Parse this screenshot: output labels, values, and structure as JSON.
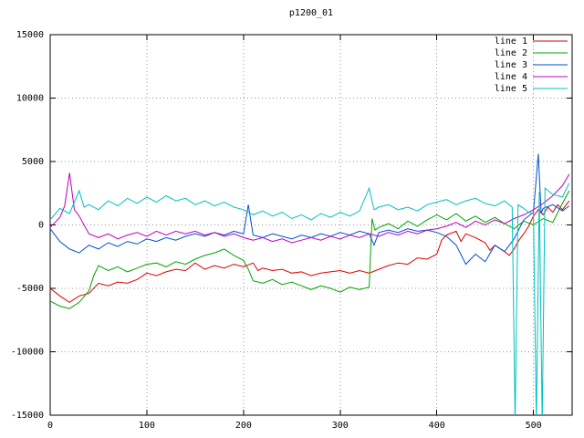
{
  "chart_data": {
    "type": "line",
    "title": "p1200_01",
    "xlabel": "",
    "ylabel": "",
    "xlim": [
      0,
      540
    ],
    "ylim": [
      -15000,
      15000
    ],
    "xticks": [
      0,
      100,
      200,
      300,
      400,
      500
    ],
    "yticks": [
      -15000,
      -10000,
      -5000,
      0,
      5000,
      10000,
      15000
    ],
    "grid": true,
    "legend_position": "top-right",
    "background": "#ffffff",
    "grid_color": "#999999",
    "axis_color": "#000000",
    "series": [
      {
        "name": "line 1",
        "color": "#dd0000",
        "points": [
          [
            0,
            -5000
          ],
          [
            10,
            -5600
          ],
          [
            20,
            -6100
          ],
          [
            30,
            -5600
          ],
          [
            40,
            -5400
          ],
          [
            50,
            -4600
          ],
          [
            60,
            -4800
          ],
          [
            70,
            -4500
          ],
          [
            80,
            -4600
          ],
          [
            90,
            -4300
          ],
          [
            100,
            -3800
          ],
          [
            110,
            -4000
          ],
          [
            120,
            -3700
          ],
          [
            130,
            -3500
          ],
          [
            140,
            -3600
          ],
          [
            150,
            -3000
          ],
          [
            160,
            -3500
          ],
          [
            170,
            -3200
          ],
          [
            180,
            -3400
          ],
          [
            190,
            -3100
          ],
          [
            200,
            -3300
          ],
          [
            210,
            -3000
          ],
          [
            215,
            -3600
          ],
          [
            220,
            -3400
          ],
          [
            230,
            -3600
          ],
          [
            240,
            -3500
          ],
          [
            250,
            -3800
          ],
          [
            260,
            -3700
          ],
          [
            270,
            -4000
          ],
          [
            280,
            -3800
          ],
          [
            290,
            -3700
          ],
          [
            300,
            -3600
          ],
          [
            310,
            -3800
          ],
          [
            320,
            -3600
          ],
          [
            330,
            -3800
          ],
          [
            340,
            -3500
          ],
          [
            350,
            -3200
          ],
          [
            360,
            -3000
          ],
          [
            370,
            -3100
          ],
          [
            380,
            -2600
          ],
          [
            390,
            -2700
          ],
          [
            400,
            -2300
          ],
          [
            405,
            -1200
          ],
          [
            410,
            -800
          ],
          [
            420,
            -500
          ],
          [
            425,
            -1300
          ],
          [
            430,
            -700
          ],
          [
            440,
            -1000
          ],
          [
            450,
            -1400
          ],
          [
            455,
            -2000
          ],
          [
            460,
            -1600
          ],
          [
            470,
            -2100
          ],
          [
            475,
            -2400
          ],
          [
            480,
            -1900
          ],
          [
            485,
            -1200
          ],
          [
            490,
            -700
          ],
          [
            495,
            -100
          ],
          [
            500,
            700
          ],
          [
            505,
            1200
          ],
          [
            510,
            800
          ],
          [
            515,
            1400
          ],
          [
            520,
            1000
          ],
          [
            525,
            1600
          ],
          [
            530,
            1200
          ],
          [
            537,
            1900
          ]
        ]
      },
      {
        "name": "line 2",
        "color": "#00a500",
        "points": [
          [
            0,
            -6000
          ],
          [
            10,
            -6400
          ],
          [
            20,
            -6600
          ],
          [
            30,
            -6100
          ],
          [
            40,
            -5200
          ],
          [
            45,
            -4000
          ],
          [
            50,
            -3200
          ],
          [
            60,
            -3600
          ],
          [
            70,
            -3300
          ],
          [
            80,
            -3700
          ],
          [
            90,
            -3400
          ],
          [
            100,
            -3100
          ],
          [
            110,
            -3000
          ],
          [
            120,
            -3300
          ],
          [
            130,
            -2900
          ],
          [
            140,
            -3100
          ],
          [
            150,
            -2700
          ],
          [
            160,
            -2400
          ],
          [
            170,
            -2200
          ],
          [
            180,
            -1900
          ],
          [
            190,
            -2400
          ],
          [
            200,
            -2800
          ],
          [
            205,
            -3500
          ],
          [
            210,
            -4400
          ],
          [
            220,
            -4600
          ],
          [
            230,
            -4300
          ],
          [
            240,
            -4700
          ],
          [
            250,
            -4500
          ],
          [
            260,
            -4800
          ],
          [
            270,
            -5100
          ],
          [
            280,
            -4800
          ],
          [
            290,
            -5000
          ],
          [
            300,
            -5300
          ],
          [
            310,
            -4900
          ],
          [
            320,
            -5100
          ],
          [
            330,
            -4900
          ],
          [
            333,
            500
          ],
          [
            336,
            -400
          ],
          [
            340,
            -200
          ],
          [
            350,
            100
          ],
          [
            360,
            -300
          ],
          [
            370,
            300
          ],
          [
            380,
            -100
          ],
          [
            390,
            400
          ],
          [
            400,
            800
          ],
          [
            410,
            400
          ],
          [
            420,
            900
          ],
          [
            430,
            300
          ],
          [
            440,
            700
          ],
          [
            450,
            200
          ],
          [
            460,
            600
          ],
          [
            470,
            100
          ],
          [
            480,
            -300
          ],
          [
            490,
            300
          ],
          [
            500,
            0
          ],
          [
            510,
            500
          ],
          [
            520,
            200
          ],
          [
            530,
            1700
          ],
          [
            537,
            2700
          ]
        ]
      },
      {
        "name": "line 3",
        "color": "#0050d0",
        "points": [
          [
            0,
            -300
          ],
          [
            10,
            -1300
          ],
          [
            20,
            -1900
          ],
          [
            30,
            -2200
          ],
          [
            40,
            -1600
          ],
          [
            50,
            -1900
          ],
          [
            60,
            -1400
          ],
          [
            70,
            -1700
          ],
          [
            80,
            -1300
          ],
          [
            90,
            -1500
          ],
          [
            100,
            -1100
          ],
          [
            110,
            -1300
          ],
          [
            120,
            -1000
          ],
          [
            130,
            -1200
          ],
          [
            140,
            -900
          ],
          [
            150,
            -700
          ],
          [
            160,
            -900
          ],
          [
            170,
            -600
          ],
          [
            180,
            -800
          ],
          [
            190,
            -500
          ],
          [
            200,
            -700
          ],
          [
            205,
            1600
          ],
          [
            210,
            -800
          ],
          [
            220,
            -1000
          ],
          [
            230,
            -700
          ],
          [
            240,
            -900
          ],
          [
            250,
            -1100
          ],
          [
            260,
            -800
          ],
          [
            270,
            -1000
          ],
          [
            280,
            -700
          ],
          [
            290,
            -900
          ],
          [
            300,
            -600
          ],
          [
            310,
            -800
          ],
          [
            320,
            -500
          ],
          [
            330,
            -700
          ],
          [
            335,
            -1600
          ],
          [
            340,
            -600
          ],
          [
            350,
            -400
          ],
          [
            360,
            -600
          ],
          [
            370,
            -300
          ],
          [
            380,
            -500
          ],
          [
            390,
            -400
          ],
          [
            400,
            -600
          ],
          [
            410,
            -900
          ],
          [
            420,
            -1600
          ],
          [
            430,
            -3100
          ],
          [
            440,
            -2300
          ],
          [
            450,
            -2900
          ],
          [
            460,
            -1600
          ],
          [
            470,
            -2100
          ],
          [
            480,
            -1100
          ],
          [
            490,
            400
          ],
          [
            500,
            1000
          ],
          [
            505,
            5600
          ],
          [
            508,
            900
          ],
          [
            510,
            1300
          ],
          [
            520,
            1600
          ],
          [
            530,
            1100
          ],
          [
            537,
            1500
          ]
        ]
      },
      {
        "name": "line 4",
        "color": "#c000c0",
        "points": [
          [
            0,
            -200
          ],
          [
            10,
            600
          ],
          [
            15,
            1500
          ],
          [
            20,
            4100
          ],
          [
            25,
            1200
          ],
          [
            30,
            700
          ],
          [
            40,
            -700
          ],
          [
            50,
            -1000
          ],
          [
            60,
            -700
          ],
          [
            70,
            -1100
          ],
          [
            80,
            -800
          ],
          [
            90,
            -600
          ],
          [
            100,
            -900
          ],
          [
            110,
            -500
          ],
          [
            120,
            -800
          ],
          [
            130,
            -500
          ],
          [
            140,
            -700
          ],
          [
            150,
            -500
          ],
          [
            160,
            -800
          ],
          [
            170,
            -600
          ],
          [
            180,
            -900
          ],
          [
            190,
            -700
          ],
          [
            200,
            -1000
          ],
          [
            210,
            -1200
          ],
          [
            220,
            -1000
          ],
          [
            230,
            -1300
          ],
          [
            240,
            -1100
          ],
          [
            250,
            -1400
          ],
          [
            260,
            -1200
          ],
          [
            270,
            -1000
          ],
          [
            280,
            -1200
          ],
          [
            290,
            -900
          ],
          [
            300,
            -1100
          ],
          [
            310,
            -800
          ],
          [
            320,
            -1000
          ],
          [
            330,
            -700
          ],
          [
            340,
            -900
          ],
          [
            350,
            -600
          ],
          [
            360,
            -800
          ],
          [
            370,
            -500
          ],
          [
            380,
            -700
          ],
          [
            390,
            -400
          ],
          [
            400,
            -300
          ],
          [
            410,
            -100
          ],
          [
            420,
            200
          ],
          [
            430,
            -200
          ],
          [
            440,
            300
          ],
          [
            450,
            0
          ],
          [
            460,
            400
          ],
          [
            470,
            100
          ],
          [
            480,
            500
          ],
          [
            490,
            800
          ],
          [
            500,
            1200
          ],
          [
            510,
            1700
          ],
          [
            520,
            2300
          ],
          [
            530,
            3100
          ],
          [
            537,
            4000
          ]
        ]
      },
      {
        "name": "line 5",
        "color": "#00c0c0",
        "points": [
          [
            0,
            400
          ],
          [
            10,
            1300
          ],
          [
            20,
            900
          ],
          [
            25,
            1800
          ],
          [
            30,
            2700
          ],
          [
            35,
            1400
          ],
          [
            40,
            1600
          ],
          [
            50,
            1200
          ],
          [
            60,
            1900
          ],
          [
            70,
            1500
          ],
          [
            80,
            2100
          ],
          [
            90,
            1700
          ],
          [
            100,
            2200
          ],
          [
            110,
            1800
          ],
          [
            120,
            2300
          ],
          [
            130,
            1900
          ],
          [
            140,
            2100
          ],
          [
            150,
            1600
          ],
          [
            160,
            1900
          ],
          [
            170,
            1500
          ],
          [
            180,
            1800
          ],
          [
            190,
            1400
          ],
          [
            200,
            1200
          ],
          [
            210,
            800
          ],
          [
            220,
            1100
          ],
          [
            230,
            700
          ],
          [
            240,
            1000
          ],
          [
            250,
            500
          ],
          [
            260,
            800
          ],
          [
            270,
            400
          ],
          [
            280,
            900
          ],
          [
            290,
            600
          ],
          [
            300,
            1000
          ],
          [
            310,
            700
          ],
          [
            320,
            1100
          ],
          [
            330,
            2900
          ],
          [
            335,
            1200
          ],
          [
            340,
            1400
          ],
          [
            350,
            1600
          ],
          [
            360,
            1200
          ],
          [
            370,
            1400
          ],
          [
            380,
            1100
          ],
          [
            390,
            1600
          ],
          [
            400,
            1800
          ],
          [
            410,
            2000
          ],
          [
            420,
            1600
          ],
          [
            430,
            1900
          ],
          [
            440,
            2100
          ],
          [
            450,
            1700
          ],
          [
            460,
            1500
          ],
          [
            470,
            1900
          ],
          [
            478,
            1400
          ],
          [
            481,
            -15600
          ],
          [
            484,
            1600
          ],
          [
            490,
            1300
          ],
          [
            495,
            1000
          ],
          [
            500,
            900
          ],
          [
            503,
            -15600
          ],
          [
            506,
            2600
          ],
          [
            509,
            -15600
          ],
          [
            512,
            2900
          ],
          [
            520,
            2400
          ],
          [
            530,
            2200
          ],
          [
            537,
            3300
          ]
        ]
      }
    ]
  }
}
